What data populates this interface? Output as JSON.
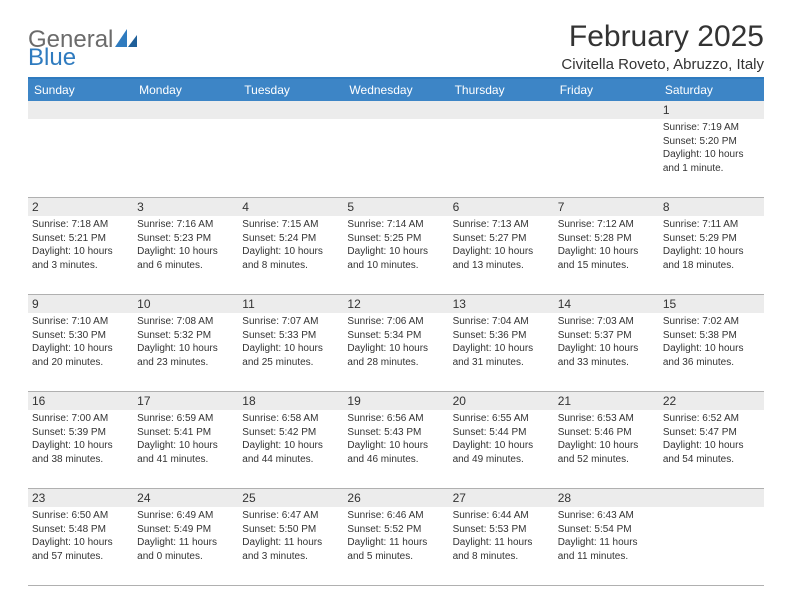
{
  "brand": {
    "name1": "General",
    "name2": "Blue"
  },
  "title": "February 2025",
  "location": "Civitella Roveto, Abruzzo, Italy",
  "colors": {
    "header_bar": "#3d85c6",
    "header_border": "#2f7bbf",
    "daynum_bg": "#ececec",
    "row_border": "#b0b0b0",
    "text": "#333333",
    "logo_gray": "#6b6b6b",
    "logo_blue": "#2f7bbf"
  },
  "weekdays": [
    "Sunday",
    "Monday",
    "Tuesday",
    "Wednesday",
    "Thursday",
    "Friday",
    "Saturday"
  ],
  "weeks": [
    {
      "nums": [
        "",
        "",
        "",
        "",
        "",
        "",
        "1"
      ],
      "cells": [
        null,
        null,
        null,
        null,
        null,
        null,
        {
          "sunrise": "Sunrise: 7:19 AM",
          "sunset": "Sunset: 5:20 PM",
          "daylight1": "Daylight: 10 hours",
          "daylight2": "and 1 minute."
        }
      ]
    },
    {
      "nums": [
        "2",
        "3",
        "4",
        "5",
        "6",
        "7",
        "8"
      ],
      "cells": [
        {
          "sunrise": "Sunrise: 7:18 AM",
          "sunset": "Sunset: 5:21 PM",
          "daylight1": "Daylight: 10 hours",
          "daylight2": "and 3 minutes."
        },
        {
          "sunrise": "Sunrise: 7:16 AM",
          "sunset": "Sunset: 5:23 PM",
          "daylight1": "Daylight: 10 hours",
          "daylight2": "and 6 minutes."
        },
        {
          "sunrise": "Sunrise: 7:15 AM",
          "sunset": "Sunset: 5:24 PM",
          "daylight1": "Daylight: 10 hours",
          "daylight2": "and 8 minutes."
        },
        {
          "sunrise": "Sunrise: 7:14 AM",
          "sunset": "Sunset: 5:25 PM",
          "daylight1": "Daylight: 10 hours",
          "daylight2": "and 10 minutes."
        },
        {
          "sunrise": "Sunrise: 7:13 AM",
          "sunset": "Sunset: 5:27 PM",
          "daylight1": "Daylight: 10 hours",
          "daylight2": "and 13 minutes."
        },
        {
          "sunrise": "Sunrise: 7:12 AM",
          "sunset": "Sunset: 5:28 PM",
          "daylight1": "Daylight: 10 hours",
          "daylight2": "and 15 minutes."
        },
        {
          "sunrise": "Sunrise: 7:11 AM",
          "sunset": "Sunset: 5:29 PM",
          "daylight1": "Daylight: 10 hours",
          "daylight2": "and 18 minutes."
        }
      ]
    },
    {
      "nums": [
        "9",
        "10",
        "11",
        "12",
        "13",
        "14",
        "15"
      ],
      "cells": [
        {
          "sunrise": "Sunrise: 7:10 AM",
          "sunset": "Sunset: 5:30 PM",
          "daylight1": "Daylight: 10 hours",
          "daylight2": "and 20 minutes."
        },
        {
          "sunrise": "Sunrise: 7:08 AM",
          "sunset": "Sunset: 5:32 PM",
          "daylight1": "Daylight: 10 hours",
          "daylight2": "and 23 minutes."
        },
        {
          "sunrise": "Sunrise: 7:07 AM",
          "sunset": "Sunset: 5:33 PM",
          "daylight1": "Daylight: 10 hours",
          "daylight2": "and 25 minutes."
        },
        {
          "sunrise": "Sunrise: 7:06 AM",
          "sunset": "Sunset: 5:34 PM",
          "daylight1": "Daylight: 10 hours",
          "daylight2": "and 28 minutes."
        },
        {
          "sunrise": "Sunrise: 7:04 AM",
          "sunset": "Sunset: 5:36 PM",
          "daylight1": "Daylight: 10 hours",
          "daylight2": "and 31 minutes."
        },
        {
          "sunrise": "Sunrise: 7:03 AM",
          "sunset": "Sunset: 5:37 PM",
          "daylight1": "Daylight: 10 hours",
          "daylight2": "and 33 minutes."
        },
        {
          "sunrise": "Sunrise: 7:02 AM",
          "sunset": "Sunset: 5:38 PM",
          "daylight1": "Daylight: 10 hours",
          "daylight2": "and 36 minutes."
        }
      ]
    },
    {
      "nums": [
        "16",
        "17",
        "18",
        "19",
        "20",
        "21",
        "22"
      ],
      "cells": [
        {
          "sunrise": "Sunrise: 7:00 AM",
          "sunset": "Sunset: 5:39 PM",
          "daylight1": "Daylight: 10 hours",
          "daylight2": "and 38 minutes."
        },
        {
          "sunrise": "Sunrise: 6:59 AM",
          "sunset": "Sunset: 5:41 PM",
          "daylight1": "Daylight: 10 hours",
          "daylight2": "and 41 minutes."
        },
        {
          "sunrise": "Sunrise: 6:58 AM",
          "sunset": "Sunset: 5:42 PM",
          "daylight1": "Daylight: 10 hours",
          "daylight2": "and 44 minutes."
        },
        {
          "sunrise": "Sunrise: 6:56 AM",
          "sunset": "Sunset: 5:43 PM",
          "daylight1": "Daylight: 10 hours",
          "daylight2": "and 46 minutes."
        },
        {
          "sunrise": "Sunrise: 6:55 AM",
          "sunset": "Sunset: 5:44 PM",
          "daylight1": "Daylight: 10 hours",
          "daylight2": "and 49 minutes."
        },
        {
          "sunrise": "Sunrise: 6:53 AM",
          "sunset": "Sunset: 5:46 PM",
          "daylight1": "Daylight: 10 hours",
          "daylight2": "and 52 minutes."
        },
        {
          "sunrise": "Sunrise: 6:52 AM",
          "sunset": "Sunset: 5:47 PM",
          "daylight1": "Daylight: 10 hours",
          "daylight2": "and 54 minutes."
        }
      ]
    },
    {
      "nums": [
        "23",
        "24",
        "25",
        "26",
        "27",
        "28",
        ""
      ],
      "cells": [
        {
          "sunrise": "Sunrise: 6:50 AM",
          "sunset": "Sunset: 5:48 PM",
          "daylight1": "Daylight: 10 hours",
          "daylight2": "and 57 minutes."
        },
        {
          "sunrise": "Sunrise: 6:49 AM",
          "sunset": "Sunset: 5:49 PM",
          "daylight1": "Daylight: 11 hours",
          "daylight2": "and 0 minutes."
        },
        {
          "sunrise": "Sunrise: 6:47 AM",
          "sunset": "Sunset: 5:50 PM",
          "daylight1": "Daylight: 11 hours",
          "daylight2": "and 3 minutes."
        },
        {
          "sunrise": "Sunrise: 6:46 AM",
          "sunset": "Sunset: 5:52 PM",
          "daylight1": "Daylight: 11 hours",
          "daylight2": "and 5 minutes."
        },
        {
          "sunrise": "Sunrise: 6:44 AM",
          "sunset": "Sunset: 5:53 PM",
          "daylight1": "Daylight: 11 hours",
          "daylight2": "and 8 minutes."
        },
        {
          "sunrise": "Sunrise: 6:43 AM",
          "sunset": "Sunset: 5:54 PM",
          "daylight1": "Daylight: 11 hours",
          "daylight2": "and 11 minutes."
        },
        null
      ]
    }
  ]
}
